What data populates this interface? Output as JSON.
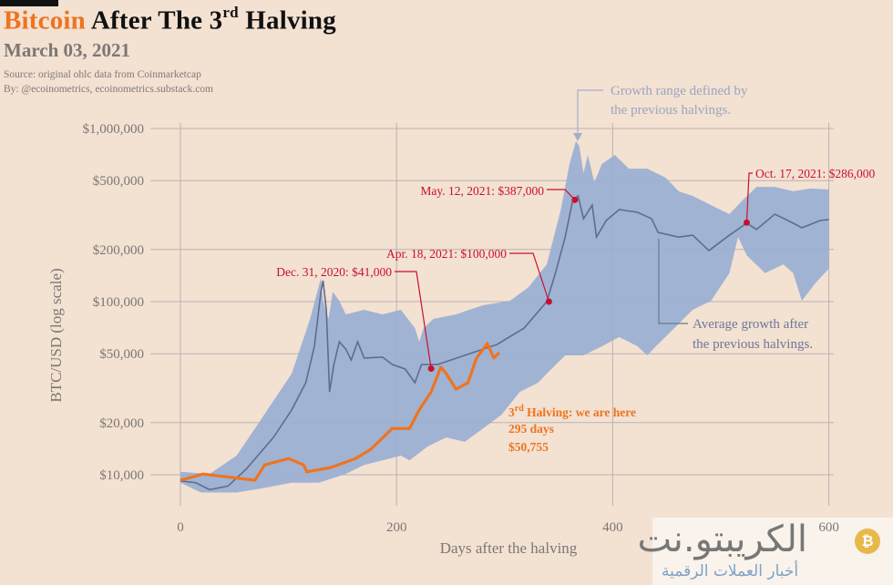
{
  "header": {
    "title_brand": "Bitcoin",
    "title_rest": "After The 3",
    "title_sup": "rd",
    "title_end": "Halving",
    "subtitle": "March 03, 2021",
    "source": "Source: original ohlc data from Coinmarketcap",
    "byline": "By: @ecoinometrics, ecoinometrics.substack.com"
  },
  "watermark": {
    "name_ar": "الكريبتو.نت",
    "tagline_ar": "أخبار العملات الرقمية"
  },
  "colors": {
    "background": "#f3e1d2",
    "brand_orange": "#ee7420",
    "band": "#9aafd3",
    "average_line": "#5d6d8e",
    "annotation_red": "#c8102e",
    "grid": "#b9b3b4"
  },
  "chart_data": {
    "type": "line",
    "xlabel": "Days after the halving",
    "ylabel": "BTC/USD (log scale)",
    "xlim": [
      0,
      600
    ],
    "ylim": [
      7000,
      1000000
    ],
    "yscale": "log",
    "grid": true,
    "x_ticks": [
      0,
      200,
      400,
      600
    ],
    "x_tick_labels": [
      "0",
      "200",
      "400",
      "600"
    ],
    "y_ticks": [
      10000,
      20000,
      50000,
      100000,
      200000,
      500000,
      1000000
    ],
    "y_tick_labels": [
      "$10,000",
      "$20,000",
      "$50,000",
      "$100,000",
      "$200,000",
      "$500,000",
      "$1,000,000"
    ],
    "band": {
      "upper": [
        [
          0,
          10400
        ],
        [
          27,
          10100
        ],
        [
          52,
          12900
        ],
        [
          69,
          18500
        ],
        [
          86,
          26700
        ],
        [
          103,
          38400
        ],
        [
          120,
          79400
        ],
        [
          130,
          137000
        ],
        [
          132,
          101000
        ],
        [
          137,
          79400
        ],
        [
          141,
          114000
        ],
        [
          147,
          101000
        ],
        [
          153,
          84400
        ],
        [
          170,
          89700
        ],
        [
          187,
          84400
        ],
        [
          204,
          89700
        ],
        [
          217,
          70300
        ],
        [
          221,
          58600
        ],
        [
          225,
          70300
        ],
        [
          234,
          79400
        ],
        [
          255,
          84400
        ],
        [
          280,
          95300
        ],
        [
          305,
          101000
        ],
        [
          322,
          121000
        ],
        [
          339,
          164000
        ],
        [
          352,
          340000
        ],
        [
          360,
          624000
        ],
        [
          366,
          844000
        ],
        [
          369,
          794000
        ],
        [
          373,
          552000
        ],
        [
          377,
          703000
        ],
        [
          383,
          489000
        ],
        [
          390,
          624000
        ],
        [
          402,
          703000
        ],
        [
          415,
          586000
        ],
        [
          432,
          586000
        ],
        [
          449,
          520000
        ],
        [
          461,
          434000
        ],
        [
          474,
          408000
        ],
        [
          491,
          361000
        ],
        [
          508,
          320000
        ],
        [
          520,
          384000
        ],
        [
          533,
          460000
        ],
        [
          550,
          460000
        ],
        [
          567,
          434000
        ],
        [
          583,
          450000
        ],
        [
          600,
          444000
        ]
      ],
      "lower": [
        [
          0,
          9000
        ],
        [
          19,
          7900
        ],
        [
          52,
          7900
        ],
        [
          78,
          8400
        ],
        [
          103,
          9000
        ],
        [
          128,
          9000
        ],
        [
          153,
          10100
        ],
        [
          170,
          11400
        ],
        [
          187,
          12100
        ],
        [
          204,
          12900
        ],
        [
          212,
          12100
        ],
        [
          229,
          14600
        ],
        [
          246,
          16400
        ],
        [
          263,
          15500
        ],
        [
          280,
          18500
        ],
        [
          297,
          22200
        ],
        [
          314,
          30100
        ],
        [
          331,
          34000
        ],
        [
          339,
          38400
        ],
        [
          356,
          48900
        ],
        [
          373,
          48900
        ],
        [
          390,
          55200
        ],
        [
          406,
          62400
        ],
        [
          423,
          55200
        ],
        [
          432,
          48900
        ],
        [
          440,
          55200
        ],
        [
          457,
          70300
        ],
        [
          474,
          89700
        ],
        [
          491,
          101000
        ],
        [
          508,
          146000
        ],
        [
          516,
          236000
        ],
        [
          524,
          185000
        ],
        [
          541,
          146000
        ],
        [
          558,
          164000
        ],
        [
          567,
          146000
        ],
        [
          575,
          101000
        ],
        [
          588,
          129000
        ],
        [
          600,
          155000
        ]
      ]
    },
    "series": [
      {
        "role": "average",
        "values": [
          [
            0,
            9200
          ],
          [
            14,
            9000
          ],
          [
            27,
            8200
          ],
          [
            44,
            8600
          ],
          [
            61,
            10800
          ],
          [
            86,
            16400
          ],
          [
            103,
            23700
          ],
          [
            116,
            34000
          ],
          [
            124,
            55200
          ],
          [
            130,
            114000
          ],
          [
            132,
            132000
          ],
          [
            135,
            89700
          ],
          [
            138,
            30100
          ],
          [
            142,
            43300
          ],
          [
            147,
            58600
          ],
          [
            153,
            53200
          ],
          [
            158,
            46000
          ],
          [
            164,
            58600
          ],
          [
            170,
            47200
          ],
          [
            187,
            47800
          ],
          [
            196,
            43300
          ],
          [
            208,
            40800
          ],
          [
            217,
            34000
          ],
          [
            223,
            43300
          ],
          [
            238,
            43300
          ],
          [
            263,
            48900
          ],
          [
            293,
            56600
          ],
          [
            318,
            70300
          ],
          [
            339,
            100000
          ],
          [
            347,
            146000
          ],
          [
            356,
            236000
          ],
          [
            363,
            384000
          ],
          [
            368,
            408000
          ],
          [
            373,
            301000
          ],
          [
            381,
            361000
          ],
          [
            385,
            236000
          ],
          [
            394,
            294000
          ],
          [
            406,
            340000
          ],
          [
            423,
            328000
          ],
          [
            436,
            301000
          ],
          [
            442,
            251000
          ],
          [
            461,
            236000
          ],
          [
            474,
            242000
          ],
          [
            489,
            197000
          ],
          [
            508,
            242000
          ],
          [
            524,
            284000
          ],
          [
            533,
            261000
          ],
          [
            550,
            320000
          ],
          [
            567,
            284000
          ],
          [
            575,
            267000
          ],
          [
            592,
            294000
          ],
          [
            600,
            298000
          ]
        ]
      },
      {
        "role": "3rd-halving",
        "values": [
          [
            0,
            9300
          ],
          [
            21,
            10100
          ],
          [
            38,
            9800
          ],
          [
            69,
            9300
          ],
          [
            78,
            11400
          ],
          [
            100,
            12400
          ],
          [
            114,
            11400
          ],
          [
            117,
            10400
          ],
          [
            139,
            11000
          ],
          [
            162,
            12400
          ],
          [
            176,
            14000
          ],
          [
            196,
            18500
          ],
          [
            212,
            18500
          ],
          [
            221,
            23700
          ],
          [
            232,
            30100
          ],
          [
            241,
            41800
          ],
          [
            246,
            38400
          ],
          [
            255,
            31200
          ],
          [
            266,
            34000
          ],
          [
            274,
            47200
          ],
          [
            284,
            57300
          ],
          [
            290,
            47200
          ],
          [
            295,
            50755
          ]
        ]
      }
    ],
    "annotations": [
      {
        "day": 232,
        "value": 41000,
        "label": "Dec. 31, 2020: $41,000"
      },
      {
        "day": 341,
        "value": 100000,
        "label": "Apr. 18, 2021: $100,000"
      },
      {
        "day": 365,
        "value": 387000,
        "label": "May. 12, 2021: $387,000"
      },
      {
        "day": 524,
        "value": 286000,
        "label": "Oct. 17, 2021: $286,000"
      }
    ],
    "band_note": [
      "Growth range defined by",
      "the previous halvings."
    ],
    "average_note": [
      "Average growth after",
      "the previous halvings."
    ],
    "current": {
      "label_prefix": "3",
      "label_sup": "rd",
      "label_rest": " Halving: we are here",
      "days": "295 days",
      "price": "$50,755"
    }
  }
}
